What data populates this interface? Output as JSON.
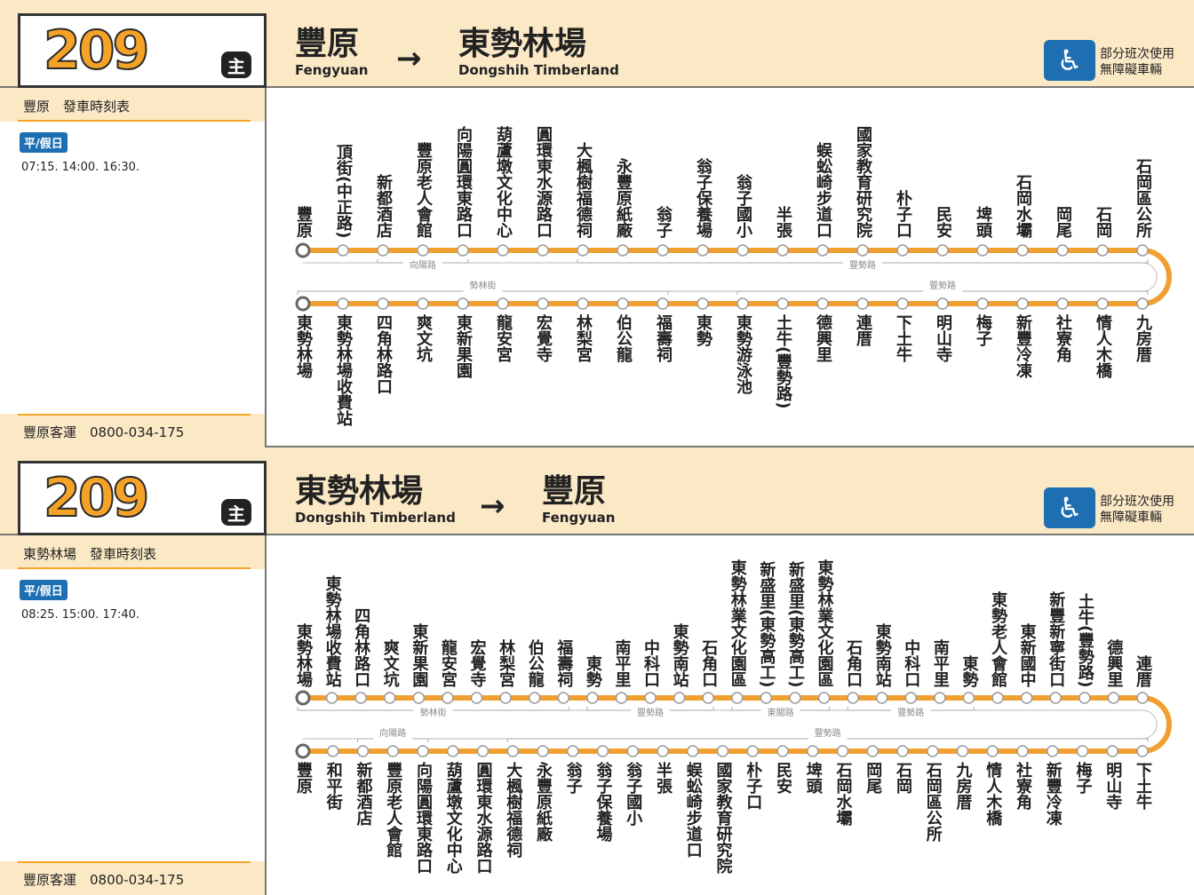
{
  "panels": [
    {
      "route_number": "209",
      "badge": "主",
      "from": {
        "zh": "豐原",
        "en": "Fengyuan"
      },
      "to": {
        "zh": "東勢林場",
        "en": "Dongshih Timberland"
      },
      "arrow": "→",
      "accessible": {
        "icon": "wheelchair-icon",
        "line1": "部分班次使用",
        "line2": "無障礙車輛"
      },
      "timetable_title": "豐原　發車時刻表",
      "day_type": "平/假日",
      "times": "07:15. 14:00. 16:30.",
      "operator": "豐原客運　0800-034-175",
      "row1": [
        "豐原",
        "頂街(中正路)",
        "新都酒店",
        "豐原老人會館",
        "向陽圓環東路口",
        "葫蘆墩文化中心",
        "圓環東水源路口",
        "大楓樹福德祠",
        "永豐原紙廠",
        "翁子",
        "翁子保養場",
        "翁子國小",
        "半張",
        "蜈蚣崎步道口",
        "國家教育研究院",
        "朴子口",
        "民安",
        "埤頭",
        "石岡水壩",
        "岡尾",
        "石岡",
        "石岡區公所"
      ],
      "row2": [
        "東勢林場",
        "東勢林場收費站",
        "四角林路口",
        "爽文坑",
        "東新果園",
        "龍安宮",
        "宏覺寺",
        "林梨宮",
        "伯公龍",
        "福壽祠",
        "東勢",
        "東勢游泳池",
        "土牛(豐勢路)",
        "德興里",
        "連厝",
        "下土牛",
        "明山寺",
        "梅子",
        "新豐冷凍",
        "社寮角",
        "情人木橋",
        "九房厝"
      ],
      "row1_segments": [
        {
          "label": "向陽路",
          "from": 2,
          "to": 4
        },
        {
          "label": "豐勢路",
          "from": 7,
          "to": 21
        }
      ],
      "row2_segments": [
        {
          "label": "勢林街",
          "from": 0,
          "to": 9
        },
        {
          "label": "豐勢路",
          "from": 11,
          "to": 21
        }
      ]
    },
    {
      "route_number": "209",
      "badge": "主",
      "from": {
        "zh": "東勢林場",
        "en": "Dongshih Timberland"
      },
      "to": {
        "zh": "豐原",
        "en": "Fengyuan"
      },
      "arrow": "→",
      "accessible": {
        "icon": "wheelchair-icon",
        "line1": "部分班次使用",
        "line2": "無障礙車輛"
      },
      "timetable_title": "東勢林場　發車時刻表",
      "day_type": "平/假日",
      "times": "08:25. 15:00. 17:40.",
      "operator": "豐原客運　0800-034-175",
      "row1": [
        "東勢林場",
        "東勢林場收費站",
        "四角林路口",
        "爽文坑",
        "東新果園",
        "龍安宮",
        "宏覺寺",
        "林梨宮",
        "伯公龍",
        "福壽祠",
        "東勢",
        "南平里",
        "中科口",
        "東勢南站",
        "石角口",
        "東勢林業文化園區",
        "新盛里(東勢高工)",
        "新盛里(東勢高工)",
        "東勢林業文化園區",
        "石角口",
        "東勢南站",
        "中科口",
        "南平里",
        "東勢",
        "東勢老人會館",
        "東新國中",
        "新豐新寧街口",
        "土牛(豐勢路)",
        "德興里",
        "連厝"
      ],
      "row2": [
        "豐原",
        "和平街",
        "新都酒店",
        "豐原老人會館",
        "向陽圓環東路口",
        "葫蘆墩文化中心",
        "圓環東水源路口",
        "大楓樹福德祠",
        "永豐原紙廠",
        "翁子",
        "翁子保養場",
        "翁子國小",
        "半張",
        "蜈蚣崎步道口",
        "國家教育研究院",
        "朴子口",
        "民安",
        "埤頭",
        "石岡水壩",
        "岡尾",
        "石岡",
        "石岡區公所",
        "九房厝",
        "情人木橋",
        "社寮角",
        "新豐冷凍",
        "梅子",
        "明山寺",
        "下土牛"
      ],
      "row1_segments": [
        {
          "label": "勢林街",
          "from": 0,
          "to": 9
        },
        {
          "label": "豐勢路",
          "from": 10,
          "to": 14
        },
        {
          "label": "東關路",
          "from": 15,
          "to": 18
        },
        {
          "label": "豐勢路",
          "from": 19,
          "to": 23
        }
      ],
      "row2_segments": [
        {
          "label": "向陽路",
          "from": 2,
          "to": 4
        },
        {
          "label": "豐勢路",
          "from": 7,
          "to": 28
        }
      ]
    }
  ],
  "colors": {
    "route_line": "#f0a030",
    "header_bg": "#fbe9c6",
    "accent_blue": "#1d6fb2"
  }
}
